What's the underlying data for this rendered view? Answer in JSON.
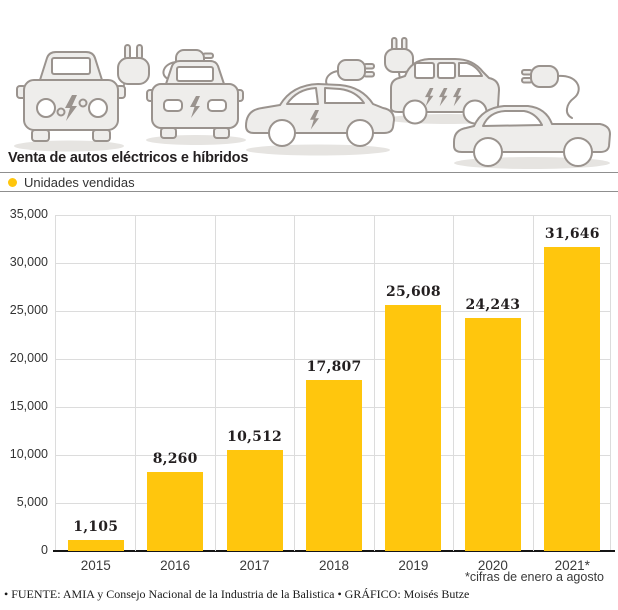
{
  "header": {
    "title": "Venta de autos eléctricos e híbridos",
    "legend_label": "Unidades vendidas"
  },
  "illustration": {
    "description": "five light-gray electric/hybrid cars with charging plugs and lightning bolts",
    "icons": [
      "electric-car-front-icon",
      "electric-car-front-2-icon",
      "electric-sedan-side-icon",
      "electric-van-side-icon",
      "electric-pickup-side-icon",
      "power-plug-icon",
      "lightning-bolt-icon"
    ]
  },
  "chart_data": {
    "type": "bar",
    "title": "Venta de autos eléctricos e híbridos",
    "series_name": "Unidades vendidas",
    "categories": [
      "2015",
      "2016",
      "2017",
      "2018",
      "2019",
      "2020",
      "2021*"
    ],
    "values": [
      1105,
      8260,
      10512,
      17807,
      25608,
      24243,
      31646
    ],
    "value_labels": [
      "1,105",
      "8,260",
      "10,512",
      "17,807",
      "25,608",
      "24,243",
      "31,646"
    ],
    "xlabel": "",
    "ylabel": "",
    "ylim": [
      0,
      35000
    ],
    "y_ticks": [
      35000,
      30000,
      25000,
      20000,
      15000,
      10000,
      5000,
      0
    ],
    "y_tick_labels": [
      "35,000",
      "30,000",
      "25,000",
      "20,000",
      "15,000",
      "10,000",
      "5,000",
      "0"
    ],
    "grid": true,
    "legend_position": "top-left",
    "bar_color": "#ffc60d",
    "footnote": "*cifras de enero a agosto"
  },
  "footer": {
    "source": "• FUENTE: AMIA y Consejo Nacional de la Industria de la Balistica • GRÁFICO: Moisés Butze"
  },
  "colors": {
    "bar_yellow": "#ffc60d",
    "gridline": "#dcdcdc",
    "axis_line": "#151515",
    "text_dark": "#231f20",
    "car_fill": "#eeedeb",
    "car_stroke": "#9a938e",
    "car_shadow": "#e6e4e1"
  }
}
